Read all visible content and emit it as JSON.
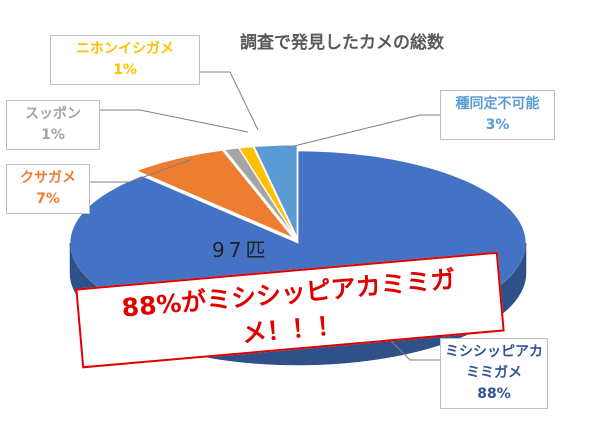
{
  "chart_data": {
    "type": "pie3d",
    "title": "調査で発見したカメの総数",
    "categories": [
      "ミシシッピアカミミガメ",
      "クサガメ",
      "スッポン",
      "ニホンイシガメ",
      "種同定不可能"
    ],
    "values": [
      88,
      7,
      1,
      1,
      3
    ],
    "value_labels": [
      "88%",
      "7%",
      "1%",
      "1%",
      "3%"
    ],
    "colors": [
      "#4472c4",
      "#ed7d31",
      "#a5a5a5",
      "#ffc000",
      "#5b9bd5"
    ],
    "annotations": [
      "97匹",
      "88%がミシシッピアカミミガメ！！！"
    ]
  }
}
